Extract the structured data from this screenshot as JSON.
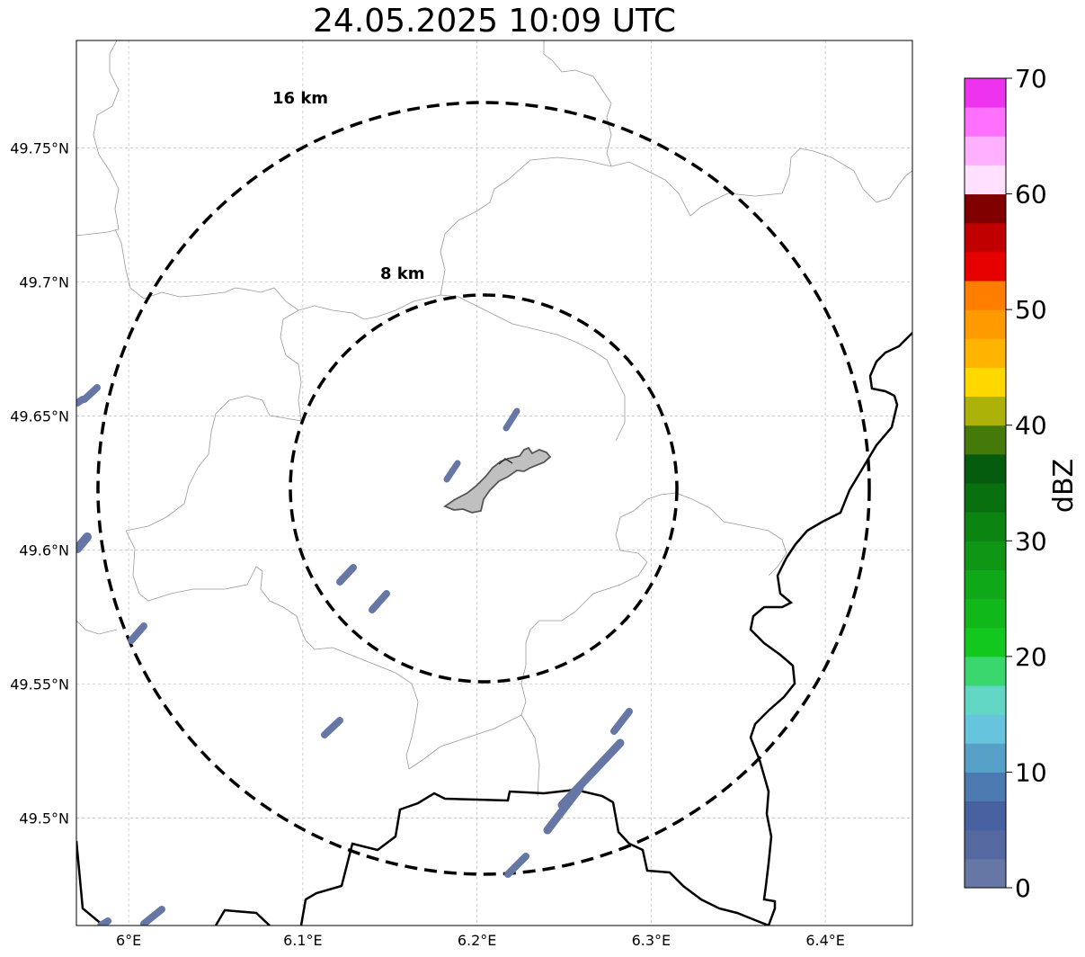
{
  "title": "24.05.2025 10:09 UTC",
  "map": {
    "lon_range": [
      5.97,
      6.45
    ],
    "lat_range": [
      49.46,
      49.79
    ],
    "lon_ticks": [
      {
        "value": 6.0,
        "label": "6°E"
      },
      {
        "value": 6.1,
        "label": "6.1°E"
      },
      {
        "value": 6.2,
        "label": "6.2°E"
      },
      {
        "value": 6.3,
        "label": "6.3°E"
      },
      {
        "value": 6.4,
        "label": "6.4°E"
      }
    ],
    "lat_ticks": [
      {
        "value": 49.5,
        "label": "49.5°N"
      },
      {
        "value": 49.55,
        "label": "49.55°N"
      },
      {
        "value": 49.6,
        "label": "49.6°N"
      },
      {
        "value": 49.65,
        "label": "49.65°N"
      },
      {
        "value": 49.7,
        "label": "49.7°N"
      },
      {
        "value": 49.75,
        "label": "49.75°N"
      }
    ],
    "grid": true,
    "range_rings": [
      {
        "label": "16 km"
      },
      {
        "label": "8 km"
      }
    ],
    "echo_color": "#6677a6",
    "city_fill": "#c0c0c0",
    "border_color": "#000000",
    "boundary_color": "#999999"
  },
  "colorbar": {
    "label": "dBZ",
    "min": 0,
    "max": 70,
    "tick_labels": [
      "0",
      "10",
      "20",
      "30",
      "40",
      "50",
      "60",
      "70"
    ],
    "colors": [
      "#6677a6",
      "#5568a0",
      "#4660a0",
      "#4a7ab0",
      "#57a0c8",
      "#66c4dc",
      "#62d6c4",
      "#3ad76e",
      "#12c81e",
      "#10b81a",
      "#0fa818",
      "#0e9614",
      "#0c8412",
      "#097010",
      "#065c0e",
      "#457a0a",
      "#acb20a",
      "#ffd800",
      "#ffb400",
      "#ff9a00",
      "#ff7e00",
      "#e60000",
      "#c00000",
      "#a00000",
      "#800000",
      "#ffe0ff",
      "#ffb0ff",
      "#ff70ff",
      "#ee33ee"
    ]
  }
}
